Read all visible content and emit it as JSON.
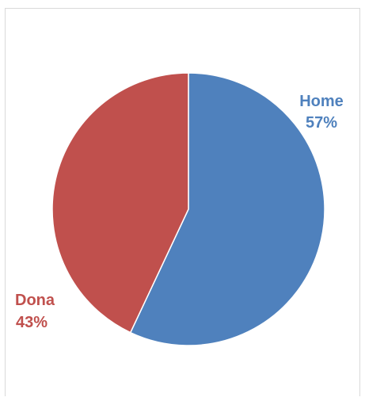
{
  "chart_data": {
    "type": "pie",
    "categories": [
      "Home",
      "Dona"
    ],
    "values": [
      57,
      43
    ],
    "value_labels": [
      "57%",
      "43%"
    ],
    "colors": [
      "#4F81BD",
      "#C0504D"
    ],
    "start_angle": "12 o'clock",
    "direction": "clockwise",
    "legend": "none",
    "labels_outside": true
  }
}
